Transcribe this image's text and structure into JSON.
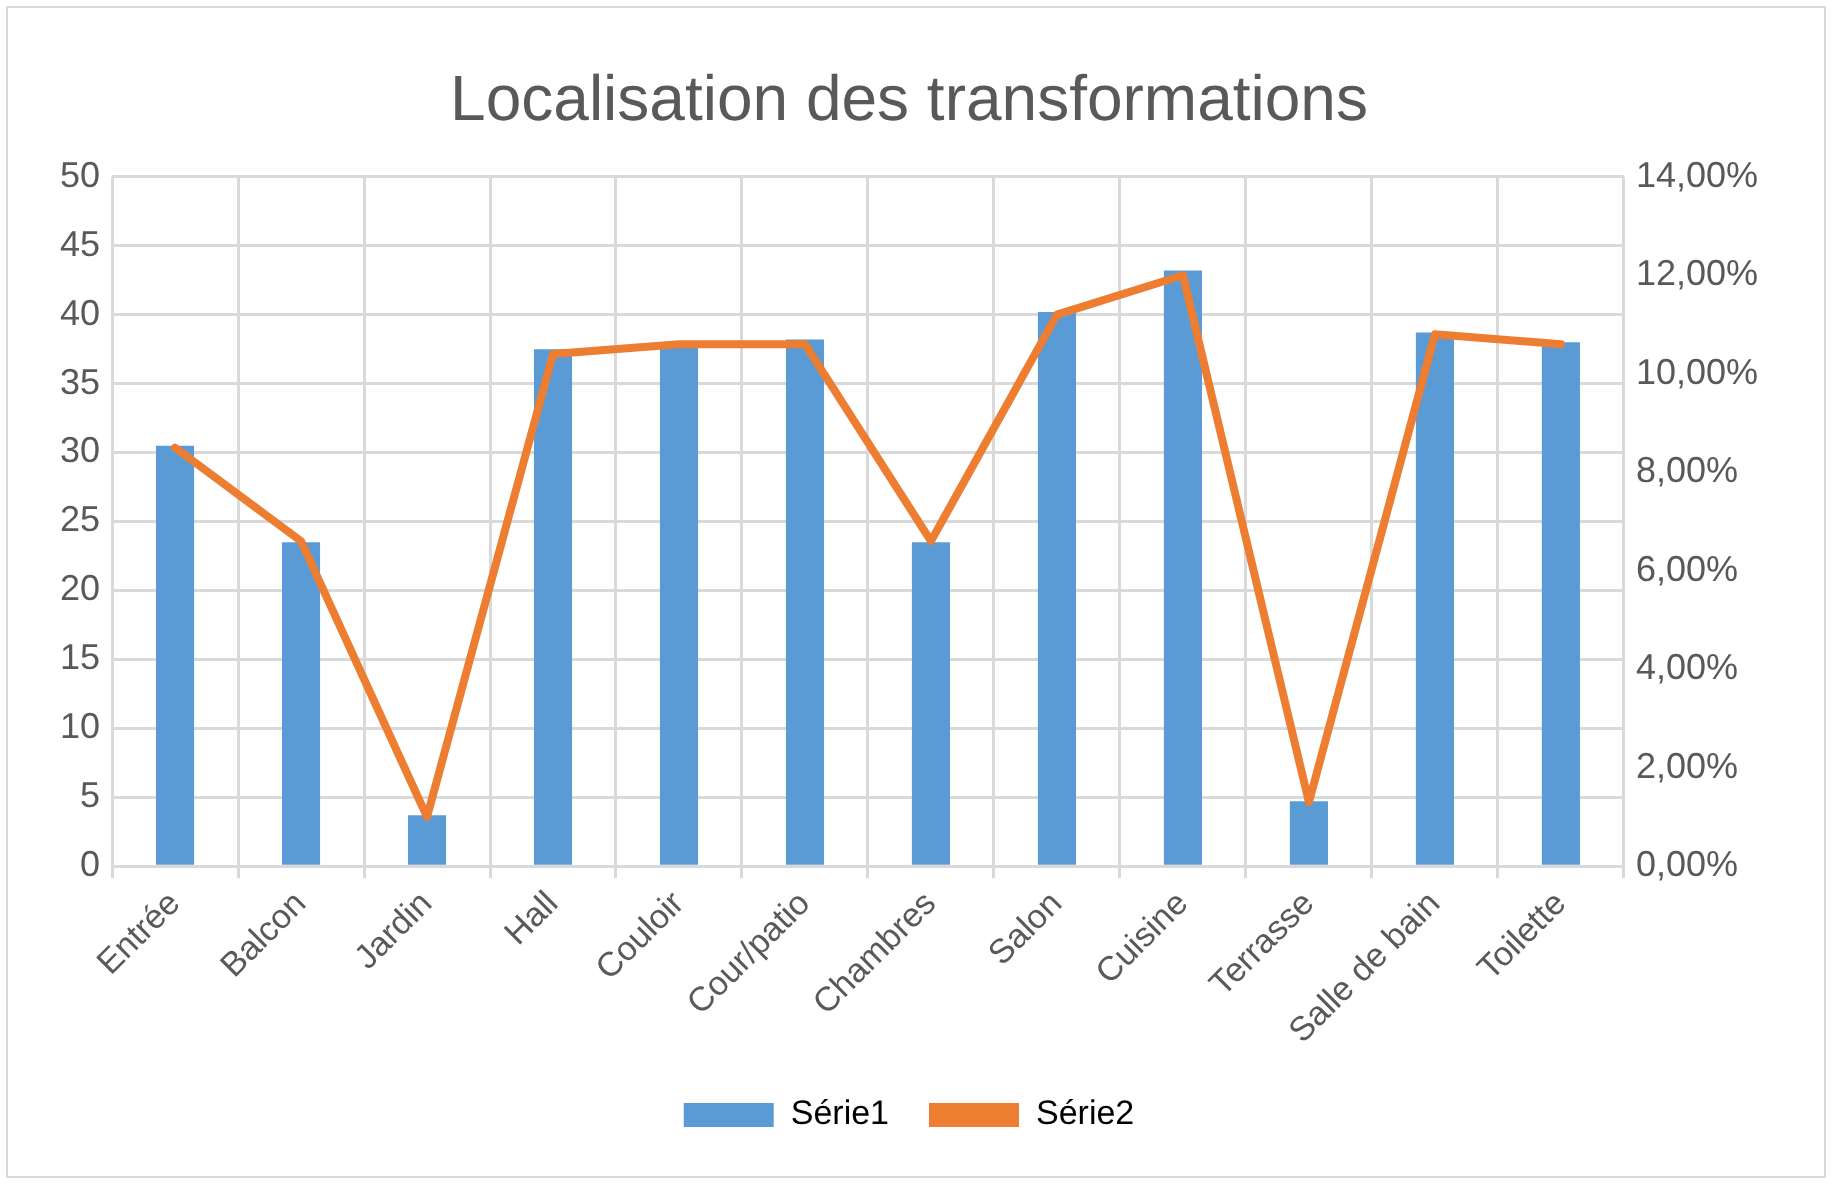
{
  "chart_data": {
    "type": "bar",
    "title": "Localisation des transformations",
    "categories": [
      "Entrée",
      "Balcon",
      "Jardin",
      "Hall",
      "Couloir",
      "Cour/patio",
      "Chambres",
      "Salon",
      "Cuisine",
      "Terrasse",
      "Salle de bain",
      "Toilette"
    ],
    "series": [
      {
        "name": "Série1",
        "color": "#5b9bd5",
        "values": [
          30.5,
          23.5,
          3.7,
          37.5,
          37.8,
          38.2,
          23.5,
          40.2,
          43.2,
          4.7,
          38.7,
          38
        ]
      },
      {
        "name": "Série2",
        "type": "line",
        "axis": "y2",
        "color": "#ed7d31",
        "values": [
          8.5,
          6.6,
          1.0,
          10.4,
          10.6,
          10.6,
          6.6,
          11.2,
          12.0,
          1.3,
          10.8,
          10.6
        ]
      }
    ],
    "ylim": [
      0,
      50
    ],
    "yticks": [
      0,
      5,
      10,
      15,
      20,
      25,
      30,
      35,
      40,
      45,
      50
    ],
    "y2lim": [
      0,
      14
    ],
    "y2ticks": [
      {
        "value": 0,
        "label": "0,00%"
      },
      {
        "value": 2,
        "label": "2,00%"
      },
      {
        "value": 4,
        "label": "4,00%"
      },
      {
        "value": 6,
        "label": "6,00%"
      },
      {
        "value": 8,
        "label": "8,00%"
      },
      {
        "value": 10,
        "label": "10,00%"
      },
      {
        "value": 12,
        "label": "12,00%"
      },
      {
        "value": 14,
        "label": "14,00%"
      }
    ],
    "grid": true,
    "legend": "bottom",
    "marker": "none"
  }
}
